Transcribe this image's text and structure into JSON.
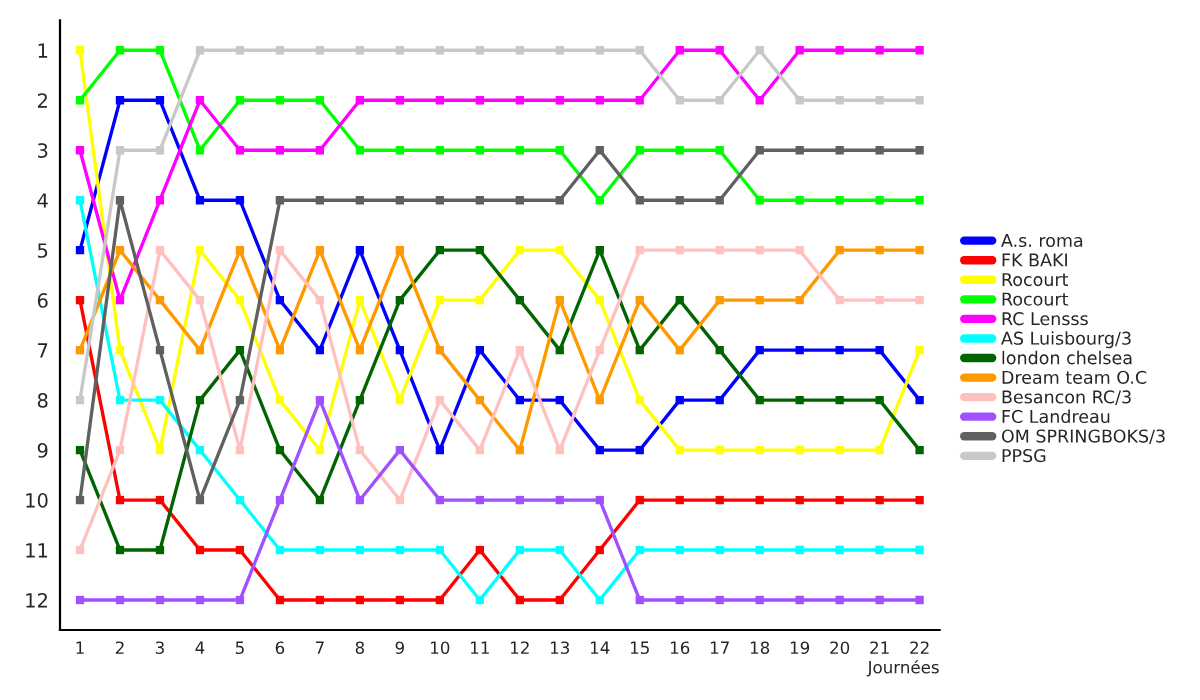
{
  "chart_data": {
    "type": "line",
    "xlabel": "Journées",
    "x": [
      1,
      2,
      3,
      4,
      5,
      6,
      7,
      8,
      9,
      10,
      11,
      12,
      13,
      14,
      15,
      16,
      17,
      18,
      19,
      20,
      21,
      22
    ],
    "xlim": [
      0.5,
      22.5
    ],
    "xticks": [
      1,
      2,
      3,
      4,
      5,
      6,
      7,
      8,
      9,
      10,
      11,
      12,
      13,
      14,
      15,
      16,
      17,
      18,
      19,
      20,
      21,
      22
    ],
    "ylim": [
      12.6,
      0.4
    ],
    "yticks": [
      1,
      2,
      3,
      4,
      5,
      6,
      7,
      8,
      9,
      10,
      11,
      12
    ],
    "grid": false,
    "legend": "right",
    "marker": "square",
    "line_style": "solid",
    "series": [
      {
        "name": "A.s. roma",
        "color": "#0000ff",
        "values": [
          5,
          2,
          2,
          4,
          4,
          6,
          7,
          5,
          7,
          9,
          7,
          8,
          8,
          9,
          9,
          8,
          8,
          7,
          7,
          7,
          7,
          8
        ]
      },
      {
        "name": "FK BAKI",
        "color": "#ff0000",
        "values": [
          6,
          10,
          10,
          11,
          11,
          12,
          12,
          12,
          12,
          12,
          11,
          12,
          12,
          11,
          10,
          10,
          10,
          10,
          10,
          10,
          10,
          10
        ]
      },
      {
        "name": "Rocourt",
        "color": "#ffff00",
        "values": [
          1,
          7,
          9,
          5,
          6,
          8,
          9,
          6,
          8,
          6,
          6,
          5,
          5,
          6,
          8,
          9,
          9,
          9,
          9,
          9,
          9,
          7
        ]
      },
      {
        "name": "Rocourt",
        "color": "#00ff00",
        "values": [
          2,
          1,
          1,
          3,
          2,
          2,
          2,
          3,
          3,
          3,
          3,
          3,
          3,
          4,
          3,
          3,
          3,
          4,
          4,
          4,
          4,
          4
        ]
      },
      {
        "name": "RC Lensss",
        "color": "#ff00ff",
        "values": [
          3,
          6,
          4,
          2,
          3,
          3,
          3,
          2,
          2,
          2,
          2,
          2,
          2,
          2,
          2,
          1,
          1,
          2,
          1,
          1,
          1,
          1
        ]
      },
      {
        "name": "AS Luisbourg/3",
        "color": "#00ffff",
        "values": [
          4,
          8,
          8,
          9,
          10,
          11,
          11,
          11,
          11,
          11,
          12,
          11,
          11,
          12,
          11,
          11,
          11,
          11,
          11,
          11,
          11,
          11
        ]
      },
      {
        "name": "london chelsea",
        "color": "#006400",
        "values": [
          9,
          11,
          11,
          8,
          7,
          9,
          10,
          8,
          6,
          5,
          5,
          6,
          7,
          5,
          7,
          6,
          7,
          8,
          8,
          8,
          8,
          9
        ]
      },
      {
        "name": "Dream team O.C",
        "color": "#ff9900",
        "values": [
          7,
          5,
          6,
          7,
          5,
          7,
          5,
          7,
          5,
          7,
          8,
          9,
          6,
          8,
          6,
          7,
          6,
          6,
          6,
          5,
          5,
          5
        ]
      },
      {
        "name": "Besancon RC/3",
        "color": "#ffc0c0",
        "values": [
          11,
          9,
          5,
          6,
          9,
          5,
          6,
          9,
          10,
          8,
          9,
          7,
          9,
          7,
          5,
          5,
          5,
          5,
          5,
          6,
          6,
          6
        ]
      },
      {
        "name": "FC Landreau",
        "color": "#a050ff",
        "values": [
          12,
          12,
          12,
          12,
          12,
          10,
          8,
          10,
          9,
          10,
          10,
          10,
          10,
          10,
          12,
          12,
          12,
          12,
          12,
          12,
          12,
          12
        ]
      },
      {
        "name": "OM SPRINGBOKS/3",
        "color": "#606060",
        "values": [
          10,
          4,
          7,
          10,
          8,
          4,
          4,
          4,
          4,
          4,
          4,
          4,
          4,
          3,
          4,
          4,
          4,
          3,
          3,
          3,
          3,
          3
        ]
      },
      {
        "name": "PPSG",
        "color": "#c8c8c8",
        "values": [
          8,
          3,
          3,
          1,
          1,
          1,
          1,
          1,
          1,
          1,
          1,
          1,
          1,
          1,
          1,
          2,
          2,
          1,
          2,
          2,
          2,
          2
        ]
      }
    ]
  }
}
